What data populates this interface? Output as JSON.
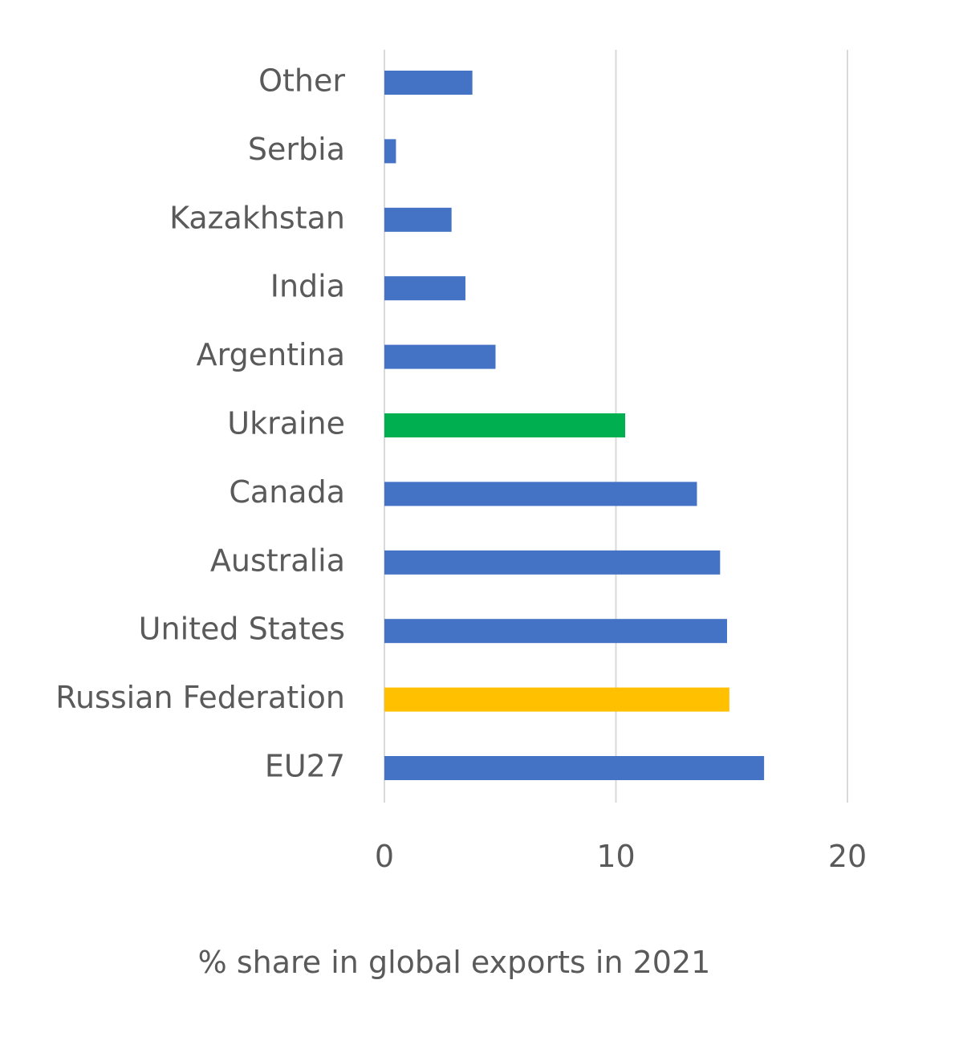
{
  "chart_data": {
    "type": "bar",
    "orientation": "horizontal",
    "categories": [
      "EU27",
      "Russian Federation",
      "United States",
      "Australia",
      "Canada",
      "Ukraine",
      "Argentina",
      "India",
      "Kazakhstan",
      "Serbia",
      "Other"
    ],
    "values": [
      16.4,
      14.9,
      14.8,
      14.5,
      13.5,
      10.4,
      4.8,
      3.5,
      2.9,
      0.5,
      3.8
    ],
    "colors": [
      "#4472c4",
      "#ffc000",
      "#4472c4",
      "#4472c4",
      "#4472c4",
      "#00b050",
      "#4472c4",
      "#4472c4",
      "#4472c4",
      "#4472c4",
      "#4472c4"
    ],
    "xlim": [
      0,
      20
    ],
    "xticks": [
      0,
      10,
      20
    ],
    "xtick_labels": [
      "0",
      "10",
      "20"
    ],
    "xlabel": "% share in global exports in 2021",
    "ylabel": "",
    "title": "",
    "grid": true,
    "legend": "none"
  }
}
